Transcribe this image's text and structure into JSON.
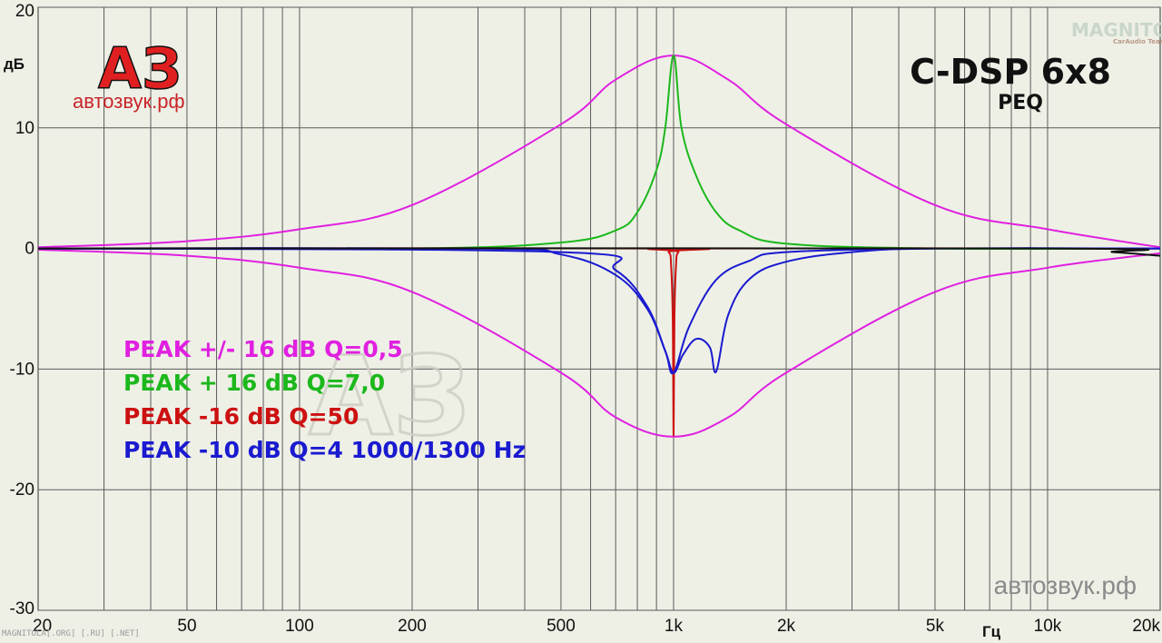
{
  "chart_data": {
    "type": "line",
    "title": "C-DSP 6x8",
    "subtitle": "PEQ",
    "xlabel": "Гц",
    "ylabel": "дБ",
    "xscale": "log",
    "xlim": [
      20,
      20000
    ],
    "ylim": [
      -30,
      20
    ],
    "grid": true,
    "y_ticks": [
      "20",
      "10",
      "0",
      "-10",
      "-20",
      "-30"
    ],
    "x_ticks": [
      "20",
      "50",
      "100",
      "200",
      "500",
      "1k",
      "2k",
      "5k",
      "10k",
      "20k"
    ],
    "series": [
      {
        "name": "PEAK +/- 16 dB Q=0,5",
        "color": "#e020e0",
        "points": [
          [
            20,
            0.1
          ],
          [
            50,
            0.6
          ],
          [
            100,
            1.6
          ],
          [
            200,
            3.6
          ],
          [
            500,
            10.3
          ],
          [
            700,
            14.0
          ],
          [
            1000,
            16.0
          ],
          [
            1400,
            14.0
          ],
          [
            2000,
            10.3
          ],
          [
            5000,
            3.6
          ],
          [
            10000,
            1.6
          ],
          [
            20000,
            0.1
          ]
        ]
      },
      {
        "name": "",
        "color": "#e020e0",
        "points": [
          [
            20,
            -0.1
          ],
          [
            50,
            -0.6
          ],
          [
            100,
            -1.6
          ],
          [
            200,
            -3.6
          ],
          [
            500,
            -10.3
          ],
          [
            700,
            -14.0
          ],
          [
            1000,
            -15.6
          ],
          [
            1400,
            -14.0
          ],
          [
            2000,
            -10.3
          ],
          [
            5000,
            -3.6
          ],
          [
            10000,
            -1.6
          ],
          [
            20000,
            -0.4
          ]
        ]
      },
      {
        "name": "PEAK + 16 dB Q=7,0",
        "color": "#1cb81c",
        "points": [
          [
            20,
            0
          ],
          [
            200,
            0
          ],
          [
            500,
            0.5
          ],
          [
            700,
            1.5
          ],
          [
            800,
            3.0
          ],
          [
            900,
            6.5
          ],
          [
            950,
            10.0
          ],
          [
            1000,
            16.0
          ],
          [
            1050,
            10.0
          ],
          [
            1150,
            6.0
          ],
          [
            1300,
            3.0
          ],
          [
            1500,
            1.5
          ],
          [
            2000,
            0.4
          ],
          [
            5000,
            0
          ],
          [
            20000,
            0
          ]
        ]
      },
      {
        "name": "PEAK -16 dB Q=50",
        "color": "#cc1111",
        "points": [
          [
            20,
            0
          ],
          [
            900,
            0
          ],
          [
            970,
            -0.3
          ],
          [
            985,
            -1.5
          ],
          [
            995,
            -6.0
          ],
          [
            1000,
            -15.5
          ],
          [
            1005,
            -6.0
          ],
          [
            1015,
            -1.5
          ],
          [
            1030,
            -0.3
          ],
          [
            1100,
            0
          ],
          [
            20000,
            0
          ]
        ]
      },
      {
        "name": "PEAK -10 dB Q=4 1000/1300 Hz",
        "color": "#1a1ad0",
        "points": [
          [
            20,
            0
          ],
          [
            300,
            0
          ],
          [
            500,
            -0.5
          ],
          [
            700,
            -2.2
          ],
          [
            850,
            -5.0
          ],
          [
            950,
            -8.5
          ],
          [
            1000,
            -10.3
          ],
          [
            1060,
            -8.8
          ],
          [
            1150,
            -7.5
          ],
          [
            1250,
            -8.2
          ],
          [
            1300,
            -10.2
          ],
          [
            1400,
            -5.5
          ],
          [
            1600,
            -2.5
          ],
          [
            2000,
            -1.1
          ],
          [
            3000,
            -0.3
          ],
          [
            5000,
            0
          ],
          [
            20000,
            0
          ]
        ]
      },
      {
        "name": "",
        "color": "#1a1ad0",
        "points": [
          [
            20,
            0
          ],
          [
            500,
            -0.3
          ],
          [
            700,
            -1.8
          ],
          [
            850,
            -4.8
          ],
          [
            950,
            -8.5
          ],
          [
            1000,
            -10.3
          ],
          [
            1100,
            -6.5
          ],
          [
            1300,
            -2.6
          ],
          [
            1600,
            -1.0
          ],
          [
            2000,
            -0.3
          ],
          [
            5000,
            0
          ],
          [
            20000,
            0
          ]
        ]
      },
      {
        "name": "",
        "color": "#111111",
        "points": [
          [
            20,
            0
          ],
          [
            10000,
            0
          ],
          [
            15000,
            -0.3
          ],
          [
            20000,
            -0.6
          ]
        ]
      }
    ]
  },
  "legend": [
    {
      "text": "PEAK +/- 16 dB Q=0,5",
      "color": "#e020e0"
    },
    {
      "text": "PEAK + 16 dB Q=7,0",
      "color": "#1cb81c"
    },
    {
      "text": "PEAK -16 dB Q=50",
      "color": "#cc1111"
    },
    {
      "text": "PEAK -10 dB Q=4 1000/1300 Hz",
      "color": "#1a1ad0"
    }
  ],
  "logo": {
    "mark": "АЗ",
    "site": "автозвук.рф"
  },
  "watermarks": {
    "site": "автозвук.рф",
    "footer": "MAGNITOLA[.ORG] [.RU] [.NET]",
    "brand": "MAGNITOLA",
    "brand_sub": "CarAudio Team",
    "center": "АЗ"
  },
  "colors": {
    "background": "#eef0e6",
    "grid": "#555555",
    "logo_red": "#e02020"
  }
}
